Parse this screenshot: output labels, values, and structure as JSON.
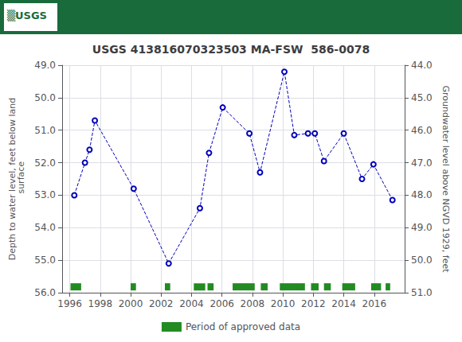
{
  "chart_data": {
    "type": "line",
    "title": "USGS 413816070323503 MA-FSW  586-0078",
    "annotation": {
      "text": "▒USGS",
      "color": "#1a6b3c"
    },
    "ylabel": "Depth to water level, feet below land\n surface",
    "y2label": "Groundwater level above NGVD 1929, feet",
    "x": [
      1996.3,
      1997.0,
      1997.3,
      1997.65,
      2000.2,
      2002.5,
      2004.55,
      2005.15,
      2006.05,
      2007.8,
      2008.5,
      2010.1,
      2010.75,
      2011.65,
      2012.1,
      2012.7,
      2014.0,
      2015.2,
      2015.95,
      2017.2
    ],
    "series": [
      {
        "type": "line",
        "color": "#0000bb",
        "line_style": "dashed",
        "marker": "open_circle",
        "values": [
          53.0,
          52.0,
          51.6,
          50.7,
          52.8,
          55.1,
          53.4,
          51.7,
          50.3,
          51.1,
          52.3,
          49.2,
          51.15,
          51.1,
          51.1,
          51.95,
          51.1,
          52.5,
          52.05,
          53.15
        ]
      },
      {
        "type": "bar",
        "name": "Period of approved data",
        "color": "#228B22",
        "y": 55.82,
        "height": 0.22,
        "x_ranges": [
          [
            1996.05,
            1996.75
          ],
          [
            2000.0,
            2000.35
          ],
          [
            2002.25,
            2002.6
          ],
          [
            2004.15,
            2004.9
          ],
          [
            2005.05,
            2005.45
          ],
          [
            2006.7,
            2008.15
          ],
          [
            2008.55,
            2009.0
          ],
          [
            2009.8,
            2011.45
          ],
          [
            2011.85,
            2012.35
          ],
          [
            2012.7,
            2013.15
          ],
          [
            2013.9,
            2014.75
          ],
          [
            2015.8,
            2016.45
          ],
          [
            2016.75,
            2017.05
          ]
        ]
      }
    ],
    "xlim": [
      1995.5,
      2018.0
    ],
    "xticks": [
      1996,
      1998,
      2000,
      2002,
      2004,
      2006,
      2008,
      2010,
      2012,
      2014,
      2016
    ],
    "ylim": [
      56.0,
      49.0
    ],
    "yticks": [
      {
        "value": 49.0,
        "label": "49.0"
      },
      {
        "value": 50.0,
        "label": "50.0"
      },
      {
        "value": 51.0,
        "label": "51.0"
      },
      {
        "value": 52.0,
        "label": "52.0"
      },
      {
        "value": 53.0,
        "label": "53.0"
      },
      {
        "value": 54.0,
        "label": "54.0"
      },
      {
        "value": 55.0,
        "label": "55.0"
      },
      {
        "value": 56.0,
        "label": "56.0"
      }
    ],
    "y2lim": [
      51.0,
      44.0
    ],
    "y2ticks": [
      {
        "value": 44.0,
        "label": "44.0"
      },
      {
        "value": 45.0,
        "label": "45.0"
      },
      {
        "value": 46.0,
        "label": "46.0"
      },
      {
        "value": 47.0,
        "label": "47.0"
      },
      {
        "value": 48.0,
        "label": "48.0"
      },
      {
        "value": 49.0,
        "label": "49.0"
      },
      {
        "value": 50.0,
        "label": "50.0"
      },
      {
        "value": 51.0,
        "label": "51.0"
      }
    ],
    "grid": true,
    "legend": "bottom"
  }
}
